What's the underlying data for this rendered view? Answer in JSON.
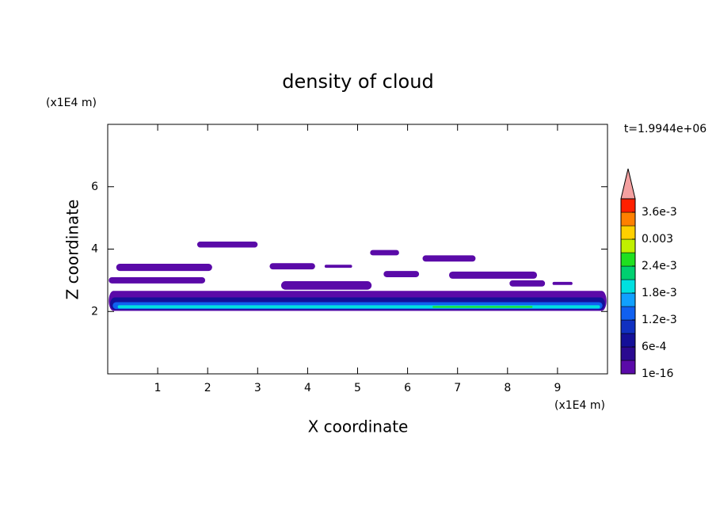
{
  "chart_data": {
    "type": "contour",
    "title": "density of cloud",
    "xlabel": "X coordinate",
    "ylabel": "Z coordinate",
    "xunit": "(x1E4 m)",
    "yunit": "(x1E4 m)",
    "annotation": "t=1.9944e+06",
    "xlim": [
      0,
      10
    ],
    "ylim": [
      0,
      8
    ],
    "xticks": [
      1,
      2,
      3,
      4,
      5,
      6,
      7,
      8,
      9
    ],
    "yticks": [
      2,
      4,
      6
    ],
    "colorbar": {
      "levels": [
        1e-16,
        0.0003,
        0.0006,
        0.0009,
        0.0012,
        0.0015,
        0.0018,
        0.0021,
        0.0024,
        0.0027,
        0.003,
        0.0033,
        0.0036,
        0.0039
      ],
      "colors": [
        "#5a0aa8",
        "#2a0a90",
        "#141098",
        "#1030c0",
        "#1060f0",
        "#10a0ff",
        "#00e0e0",
        "#00d070",
        "#20e020",
        "#c0f000",
        "#ffd000",
        "#ff8000",
        "#ff2000"
      ],
      "extend_color": "#f4a0a0",
      "ticks": [
        {
          "value": 1e-16,
          "label": "1e-16"
        },
        {
          "value": 0.0006,
          "label": "6e-4"
        },
        {
          "value": 0.0012,
          "label": "1.2e-3"
        },
        {
          "value": 0.0018,
          "label": "1.8e-3"
        },
        {
          "value": 0.0024,
          "label": "2.4e-3"
        },
        0.003,
        {
          "value": 0.0036,
          "label": "3.6e-3"
        }
      ]
    },
    "patches": [
      {
        "x": [
          0.02,
          9.98
        ],
        "z": [
          2.02,
          2.66
        ],
        "value": 1e-16
      },
      {
        "x": [
          1.79,
          3.0
        ],
        "z": [
          4.05,
          4.24
        ],
        "value": 1e-16
      },
      {
        "x": [
          0.17,
          2.09
        ],
        "z": [
          3.3,
          3.53
        ],
        "value": 1e-16
      },
      {
        "x": [
          0.02,
          1.95
        ],
        "z": [
          2.9,
          3.1
        ],
        "value": 1e-16
      },
      {
        "x": [
          3.24,
          4.15
        ],
        "z": [
          3.35,
          3.55
        ],
        "value": 1e-16
      },
      {
        "x": [
          4.34,
          4.89
        ],
        "z": [
          3.4,
          3.5
        ],
        "value": 1e-16
      },
      {
        "x": [
          5.25,
          5.83
        ],
        "z": [
          3.8,
          3.97
        ],
        "value": 1e-16
      },
      {
        "x": [
          6.3,
          7.36
        ],
        "z": [
          3.6,
          3.8
        ],
        "value": 1e-16
      },
      {
        "x": [
          5.52,
          6.23
        ],
        "z": [
          3.1,
          3.3
        ],
        "value": 1e-16
      },
      {
        "x": [
          6.83,
          8.59
        ],
        "z": [
          3.05,
          3.28
        ],
        "value": 1e-16
      },
      {
        "x": [
          3.47,
          5.28
        ],
        "z": [
          2.7,
          2.97
        ],
        "value": 1e-16
      },
      {
        "x": [
          8.04,
          8.75
        ],
        "z": [
          2.8,
          3.0
        ],
        "value": 1e-16
      },
      {
        "x": [
          8.9,
          9.3
        ],
        "z": [
          2.85,
          2.95
        ],
        "value": 1e-16
      },
      {
        "x": [
          0.05,
          9.95
        ],
        "z": [
          2.05,
          2.45
        ],
        "value": 0.0006
      },
      {
        "x": [
          0.1,
          9.9
        ],
        "z": [
          2.08,
          2.3
        ],
        "value": 0.0012
      },
      {
        "x": [
          0.2,
          9.85
        ],
        "z": [
          2.1,
          2.2
        ],
        "value": 0.0018
      },
      {
        "x": [
          6.5,
          8.5
        ],
        "z": [
          2.12,
          2.17
        ],
        "value": 0.0024
      }
    ]
  }
}
